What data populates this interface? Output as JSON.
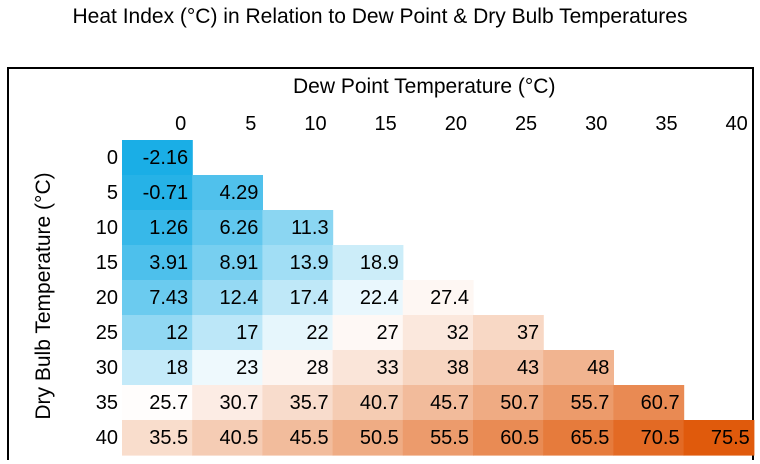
{
  "chart_data": {
    "type": "heatmap",
    "title": "Heat Index (°C) in Relation to Dew Point  & Dry Bulb Temperatures",
    "xlabel": "Dew Point Temperature (°C)",
    "ylabel": "Dry Bulb Temperature (°C)",
    "x_categories": [
      "0",
      "5",
      "10",
      "15",
      "20",
      "25",
      "30",
      "35",
      "40"
    ],
    "y_categories": [
      "0",
      "5",
      "10",
      "15",
      "20",
      "25",
      "30",
      "35",
      "40"
    ],
    "values": [
      [
        "-2.16",
        null,
        null,
        null,
        null,
        null,
        null,
        null,
        null
      ],
      [
        "-0.71",
        "4.29",
        null,
        null,
        null,
        null,
        null,
        null,
        null
      ],
      [
        "1.26",
        "6.26",
        "11.3",
        null,
        null,
        null,
        null,
        null,
        null
      ],
      [
        "3.91",
        "8.91",
        "13.9",
        "18.9",
        null,
        null,
        null,
        null,
        null
      ],
      [
        "7.43",
        "12.4",
        "17.4",
        "22.4",
        "27.4",
        null,
        null,
        null,
        null
      ],
      [
        "12",
        "17",
        "22",
        "27",
        "32",
        "37",
        null,
        null,
        null
      ],
      [
        "18",
        "23",
        "28",
        "33",
        "38",
        "43",
        "48",
        null,
        null
      ],
      [
        "25.7",
        "30.7",
        "35.7",
        "40.7",
        "45.7",
        "50.7",
        "55.7",
        "60.7",
        null
      ],
      [
        "35.5",
        "40.5",
        "45.5",
        "50.5",
        "55.5",
        "60.5",
        "65.5",
        "70.5",
        "75.5"
      ]
    ],
    "color_scale": {
      "low": "#1aaee6",
      "mid": "#ffffff",
      "high": "#e05a0c",
      "min": -2.16,
      "mid_value": 25,
      "max": 75.5
    },
    "legend": "none",
    "grid": false
  }
}
